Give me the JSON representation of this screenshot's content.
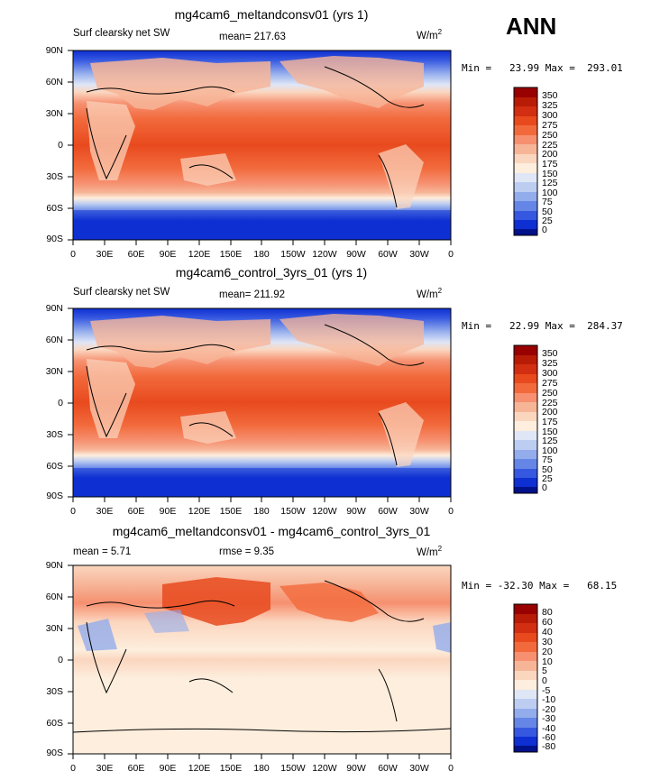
{
  "season": "ANN",
  "lat_ticks": [
    "90N",
    "60N",
    "30N",
    "0",
    "30S",
    "60S",
    "90S"
  ],
  "lon_ticks": [
    "0",
    "30E",
    "60E",
    "90E",
    "120E",
    "150E",
    "180",
    "150W",
    "120W",
    "90W",
    "60W",
    "30W",
    "0"
  ],
  "units": "W/m",
  "units_exp": "2",
  "panels": [
    {
      "title": "mg4cam6_meltandconsv01 (yrs 1)",
      "left_label": "Surf clearsky net SW",
      "center_label": "mean= 217.63",
      "minmax": "Min =   23.99 Max =  293.01",
      "colorbar_labels": [
        "350",
        "325",
        "300",
        "275",
        "250",
        "225",
        "200",
        "175",
        "150",
        "125",
        "100",
        "75",
        "50",
        "25",
        "0"
      ]
    },
    {
      "title": "mg4cam6_control_3yrs_01 (yrs 1)",
      "left_label": "Surf clearsky net SW",
      "center_label": "mean= 211.92",
      "minmax": "Min =   22.99 Max =  284.37",
      "colorbar_labels": [
        "350",
        "325",
        "300",
        "275",
        "250",
        "225",
        "200",
        "175",
        "150",
        "125",
        "100",
        "75",
        "50",
        "25",
        "0"
      ]
    },
    {
      "title": "mg4cam6_meltandconsv01 - mg4cam6_control_3yrs_01",
      "left_label": "mean =    5.71",
      "center_label": "rmse =    9.35",
      "minmax": "Min = -32.30 Max =   68.15",
      "colorbar_labels": [
        "80",
        "60",
        "40",
        "30",
        "20",
        "10",
        "5",
        "0",
        "-5",
        "-10",
        "-20",
        "-30",
        "-40",
        "-60",
        "-80"
      ]
    }
  ],
  "colors": {
    "abs_scale": [
      "#990000",
      "#b81c06",
      "#d12e12",
      "#e84a1e",
      "#f26a3c",
      "#f69070",
      "#f7b598",
      "#fbd6bf",
      "#fdeedd",
      "#dfe6f6",
      "#bccdf1",
      "#93acec",
      "#6586e6",
      "#3658e0",
      "#0e2fd1",
      "#00118a"
    ],
    "diff_scale": [
      "#990000",
      "#b81c06",
      "#d12e12",
      "#e84a1e",
      "#f26a3c",
      "#f69070",
      "#f7b598",
      "#fbd6bf",
      "#fdeedd",
      "#dfe6f6",
      "#bccdf1",
      "#93acec",
      "#6586e6",
      "#3658e0",
      "#0e2fd1",
      "#00118a"
    ]
  }
}
